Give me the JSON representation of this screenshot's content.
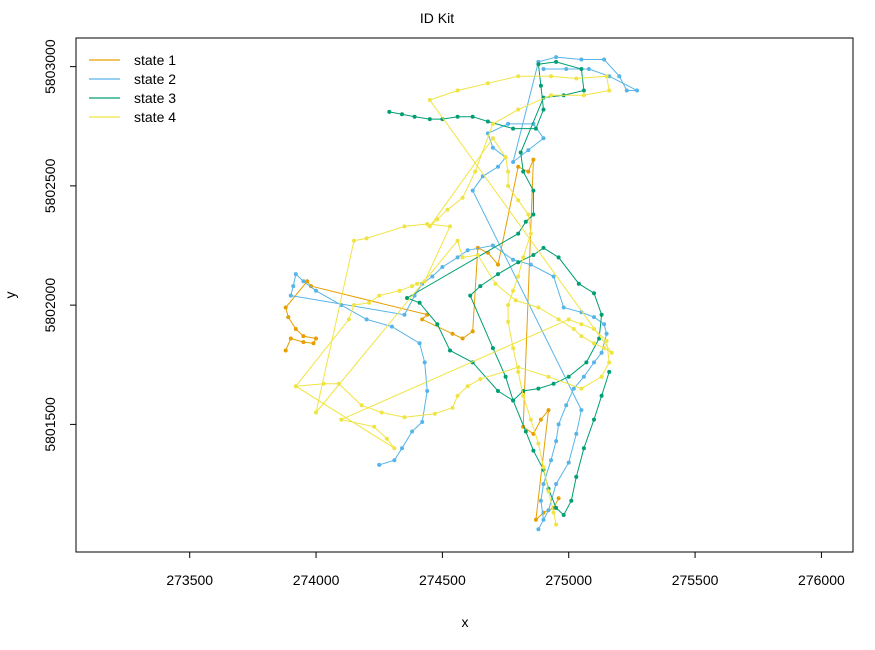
{
  "chart_data": {
    "type": "line",
    "title": "ID Kit",
    "xlabel": "x",
    "ylabel": "y",
    "xlim": [
      273050,
      276125
    ],
    "ylim": [
      5800965,
      5803120
    ],
    "x_ticks": [
      273500,
      274000,
      274500,
      275000,
      275500,
      276000
    ],
    "y_ticks": [
      5801500,
      5802000,
      5802500,
      5803000
    ],
    "x_tick_labels": [
      "273500",
      "274000",
      "274500",
      "275000",
      "275500",
      "276000"
    ],
    "y_tick_labels": [
      "5801500",
      "5802000",
      "5802500",
      "5803000"
    ],
    "grid": false,
    "legend_position": "top-left",
    "series": [
      {
        "name": "state 1",
        "color": "#E69F00",
        "points": [
          [
            273880,
            5801810
          ],
          [
            273900,
            5801860
          ],
          [
            273950,
            5801845
          ],
          [
            273990,
            5801840
          ],
          [
            274000,
            5801860
          ],
          [
            273950,
            5801870
          ],
          [
            273920,
            5801900
          ],
          [
            273890,
            5801950
          ],
          [
            273880,
            5801990
          ],
          [
            273965,
            5802100
          ],
          [
            273980,
            5802080
          ],
          [
            274440,
            5801960
          ],
          [
            274420,
            5801940
          ],
          [
            274540,
            5801880
          ],
          [
            274580,
            5801860
          ],
          [
            274620,
            5801890
          ],
          [
            274640,
            5802240
          ],
          [
            274680,
            5802220
          ],
          [
            274720,
            5802170
          ],
          [
            274800,
            5802580
          ],
          [
            274840,
            5802560
          ],
          [
            274860,
            5802610
          ],
          [
            274820,
            5801490
          ],
          [
            274860,
            5801460
          ],
          [
            274890,
            5801520
          ],
          [
            274920,
            5801560
          ],
          [
            274870,
            5801100
          ],
          [
            274900,
            5801130
          ],
          [
            274940,
            5801150
          ],
          [
            274960,
            5801190
          ]
        ]
      },
      {
        "name": "state 2",
        "color": "#56B4E9",
        "points": [
          [
            274250,
            5801330
          ],
          [
            274310,
            5801350
          ],
          [
            274340,
            5801400
          ],
          [
            274380,
            5801470
          ],
          [
            274420,
            5801510
          ],
          [
            274440,
            5801640
          ],
          [
            274430,
            5801760
          ],
          [
            274410,
            5801840
          ],
          [
            274300,
            5801910
          ],
          [
            274200,
            5801940
          ],
          [
            274100,
            5802000
          ],
          [
            274000,
            5802060
          ],
          [
            273950,
            5802100
          ],
          [
            273920,
            5802130
          ],
          [
            273910,
            5802080
          ],
          [
            273900,
            5802040
          ],
          [
            274350,
            5801960
          ],
          [
            274390,
            5802040
          ],
          [
            274420,
            5802090
          ],
          [
            274460,
            5802120
          ],
          [
            274500,
            5802160
          ],
          [
            274560,
            5802200
          ],
          [
            274600,
            5802230
          ],
          [
            274700,
            5802250
          ],
          [
            274780,
            5802190
          ],
          [
            274850,
            5802170
          ],
          [
            274940,
            5802120
          ],
          [
            274980,
            5801990
          ],
          [
            275050,
            5801970
          ],
          [
            275100,
            5801950
          ],
          [
            275140,
            5801920
          ],
          [
            275150,
            5801880
          ],
          [
            275130,
            5801800
          ],
          [
            275100,
            5801760
          ],
          [
            275060,
            5801700
          ],
          [
            275020,
            5801650
          ],
          [
            274990,
            5801580
          ],
          [
            274960,
            5801500
          ],
          [
            274950,
            5801430
          ],
          [
            274930,
            5801350
          ],
          [
            274900,
            5801250
          ],
          [
            274890,
            5801180
          ],
          [
            274900,
            5801100
          ],
          [
            274880,
            5801060
          ],
          [
            274920,
            5801140
          ],
          [
            274950,
            5801250
          ],
          [
            275000,
            5801340
          ],
          [
            275030,
            5801460
          ],
          [
            275050,
            5801560
          ],
          [
            274620,
            5802480
          ],
          [
            274660,
            5802540
          ],
          [
            274720,
            5802580
          ],
          [
            274750,
            5802620
          ],
          [
            274700,
            5802660
          ],
          [
            274680,
            5802720
          ],
          [
            274760,
            5802760
          ],
          [
            274860,
            5802760
          ],
          [
            274900,
            5802700
          ],
          [
            274840,
            5802650
          ],
          [
            274780,
            5802600
          ],
          [
            274880,
            5803020
          ],
          [
            274950,
            5803040
          ],
          [
            275050,
            5803030
          ],
          [
            275140,
            5803030
          ],
          [
            275200,
            5802960
          ],
          [
            275230,
            5802900
          ],
          [
            275270,
            5802900
          ],
          [
            275160,
            5802960
          ],
          [
            275080,
            5802990
          ],
          [
            274990,
            5802990
          ],
          [
            274900,
            5802990
          ]
        ]
      },
      {
        "name": "state 3",
        "color": "#009E73",
        "points": [
          [
            274290,
            5802810
          ],
          [
            274340,
            5802800
          ],
          [
            274390,
            5802790
          ],
          [
            274450,
            5802780
          ],
          [
            274500,
            5802780
          ],
          [
            274560,
            5802790
          ],
          [
            274620,
            5802790
          ],
          [
            274680,
            5802770
          ],
          [
            274780,
            5802740
          ],
          [
            274870,
            5802740
          ],
          [
            274900,
            5802820
          ],
          [
            274890,
            5802920
          ],
          [
            274880,
            5803010
          ],
          [
            274950,
            5803020
          ],
          [
            275050,
            5802990
          ],
          [
            275060,
            5802900
          ],
          [
            274980,
            5802880
          ],
          [
            274900,
            5802870
          ],
          [
            274810,
            5802640
          ],
          [
            274820,
            5802560
          ],
          [
            274860,
            5802480
          ],
          [
            274860,
            5802380
          ],
          [
            274830,
            5802350
          ],
          [
            274800,
            5802300
          ],
          [
            274360,
            5802030
          ],
          [
            274410,
            5802010
          ],
          [
            274480,
            5801920
          ],
          [
            274530,
            5801810
          ],
          [
            274620,
            5801760
          ],
          [
            274720,
            5801640
          ],
          [
            274780,
            5801600
          ],
          [
            274820,
            5801640
          ],
          [
            274880,
            5801650
          ],
          [
            274940,
            5801670
          ],
          [
            275000,
            5801700
          ],
          [
            275070,
            5801760
          ],
          [
            275120,
            5801860
          ],
          [
            275130,
            5801960
          ],
          [
            275100,
            5802050
          ],
          [
            275040,
            5802090
          ],
          [
            274960,
            5802200
          ],
          [
            274900,
            5802240
          ],
          [
            274860,
            5802210
          ],
          [
            274800,
            5802180
          ],
          [
            274720,
            5802130
          ],
          [
            274650,
            5802080
          ],
          [
            274610,
            5802040
          ],
          [
            274700,
            5801820
          ],
          [
            274750,
            5801700
          ],
          [
            274780,
            5801600
          ],
          [
            274830,
            5801470
          ],
          [
            274860,
            5801390
          ],
          [
            274900,
            5801310
          ],
          [
            274920,
            5801230
          ],
          [
            274950,
            5801150
          ],
          [
            274980,
            5801120
          ],
          [
            275010,
            5801180
          ],
          [
            275030,
            5801280
          ],
          [
            275060,
            5801400
          ],
          [
            275100,
            5801520
          ],
          [
            275130,
            5801620
          ],
          [
            275160,
            5801720
          ]
        ]
      },
      {
        "name": "state 4",
        "color": "#F0E442",
        "points": [
          [
            273920,
            5801660
          ],
          [
            274030,
            5801670
          ],
          [
            274090,
            5801670
          ],
          [
            274180,
            5801580
          ],
          [
            274260,
            5801550
          ],
          [
            274350,
            5801530
          ],
          [
            274470,
            5801545
          ],
          [
            274540,
            5801570
          ],
          [
            274560,
            5801620
          ],
          [
            274600,
            5801660
          ],
          [
            274650,
            5801690
          ],
          [
            274800,
            5801740
          ],
          [
            274920,
            5801700
          ],
          [
            275050,
            5801650
          ],
          [
            275130,
            5801700
          ],
          [
            275160,
            5801760
          ],
          [
            275150,
            5801850
          ],
          [
            275100,
            5801900
          ],
          [
            275050,
            5801920
          ],
          [
            275000,
            5801940
          ],
          [
            274100,
            5801520
          ],
          [
            274230,
            5801490
          ],
          [
            274280,
            5801440
          ],
          [
            274310,
            5801400
          ],
          [
            273920,
            5801660
          ],
          [
            274130,
            5801940
          ],
          [
            274150,
            5802000
          ],
          [
            274210,
            5802010
          ],
          [
            274250,
            5802040
          ],
          [
            274330,
            5802060
          ],
          [
            274380,
            5802080
          ],
          [
            274400,
            5802090
          ],
          [
            274430,
            5802100
          ],
          [
            274530,
            5802330
          ],
          [
            274440,
            5802340
          ],
          [
            274350,
            5802330
          ],
          [
            274200,
            5802280
          ],
          [
            274150,
            5802270
          ],
          [
            274000,
            5801550
          ],
          [
            274560,
            5802270
          ],
          [
            274580,
            5802200
          ],
          [
            274640,
            5802210
          ],
          [
            274710,
            5802090
          ],
          [
            274790,
            5802020
          ],
          [
            274880,
            5801990
          ],
          [
            274960,
            5801940
          ],
          [
            275020,
            5801900
          ],
          [
            275050,
            5801870
          ],
          [
            275100,
            5801840
          ],
          [
            275140,
            5801820
          ],
          [
            275170,
            5801800
          ],
          [
            274450,
            5802860
          ],
          [
            274560,
            5802900
          ],
          [
            274680,
            5802930
          ],
          [
            274800,
            5802960
          ],
          [
            274930,
            5802960
          ],
          [
            275030,
            5802950
          ],
          [
            275150,
            5802960
          ],
          [
            275160,
            5802900
          ],
          [
            275060,
            5802880
          ],
          [
            274930,
            5802880
          ],
          [
            274800,
            5802820
          ],
          [
            274700,
            5802760
          ],
          [
            274630,
            5802560
          ],
          [
            274580,
            5802450
          ],
          [
            274520,
            5802400
          ],
          [
            274480,
            5802360
          ],
          [
            274450,
            5802330
          ],
          [
            274700,
            5802700
          ],
          [
            274750,
            5802620
          ],
          [
            274760,
            5802560
          ],
          [
            274760,
            5802500
          ],
          [
            274800,
            5802440
          ],
          [
            274840,
            5802380
          ],
          [
            274850,
            5802300
          ],
          [
            274820,
            5802200
          ],
          [
            274800,
            5802120
          ],
          [
            274780,
            5802060
          ],
          [
            274760,
            5802000
          ],
          [
            274760,
            5801930
          ],
          [
            274780,
            5801820
          ],
          [
            274800,
            5801720
          ],
          [
            274820,
            5801620
          ],
          [
            274850,
            5801520
          ],
          [
            274880,
            5801420
          ],
          [
            274900,
            5801320
          ],
          [
            274920,
            5801220
          ],
          [
            274940,
            5801130
          ],
          [
            274950,
            5801080
          ]
        ]
      }
    ]
  }
}
